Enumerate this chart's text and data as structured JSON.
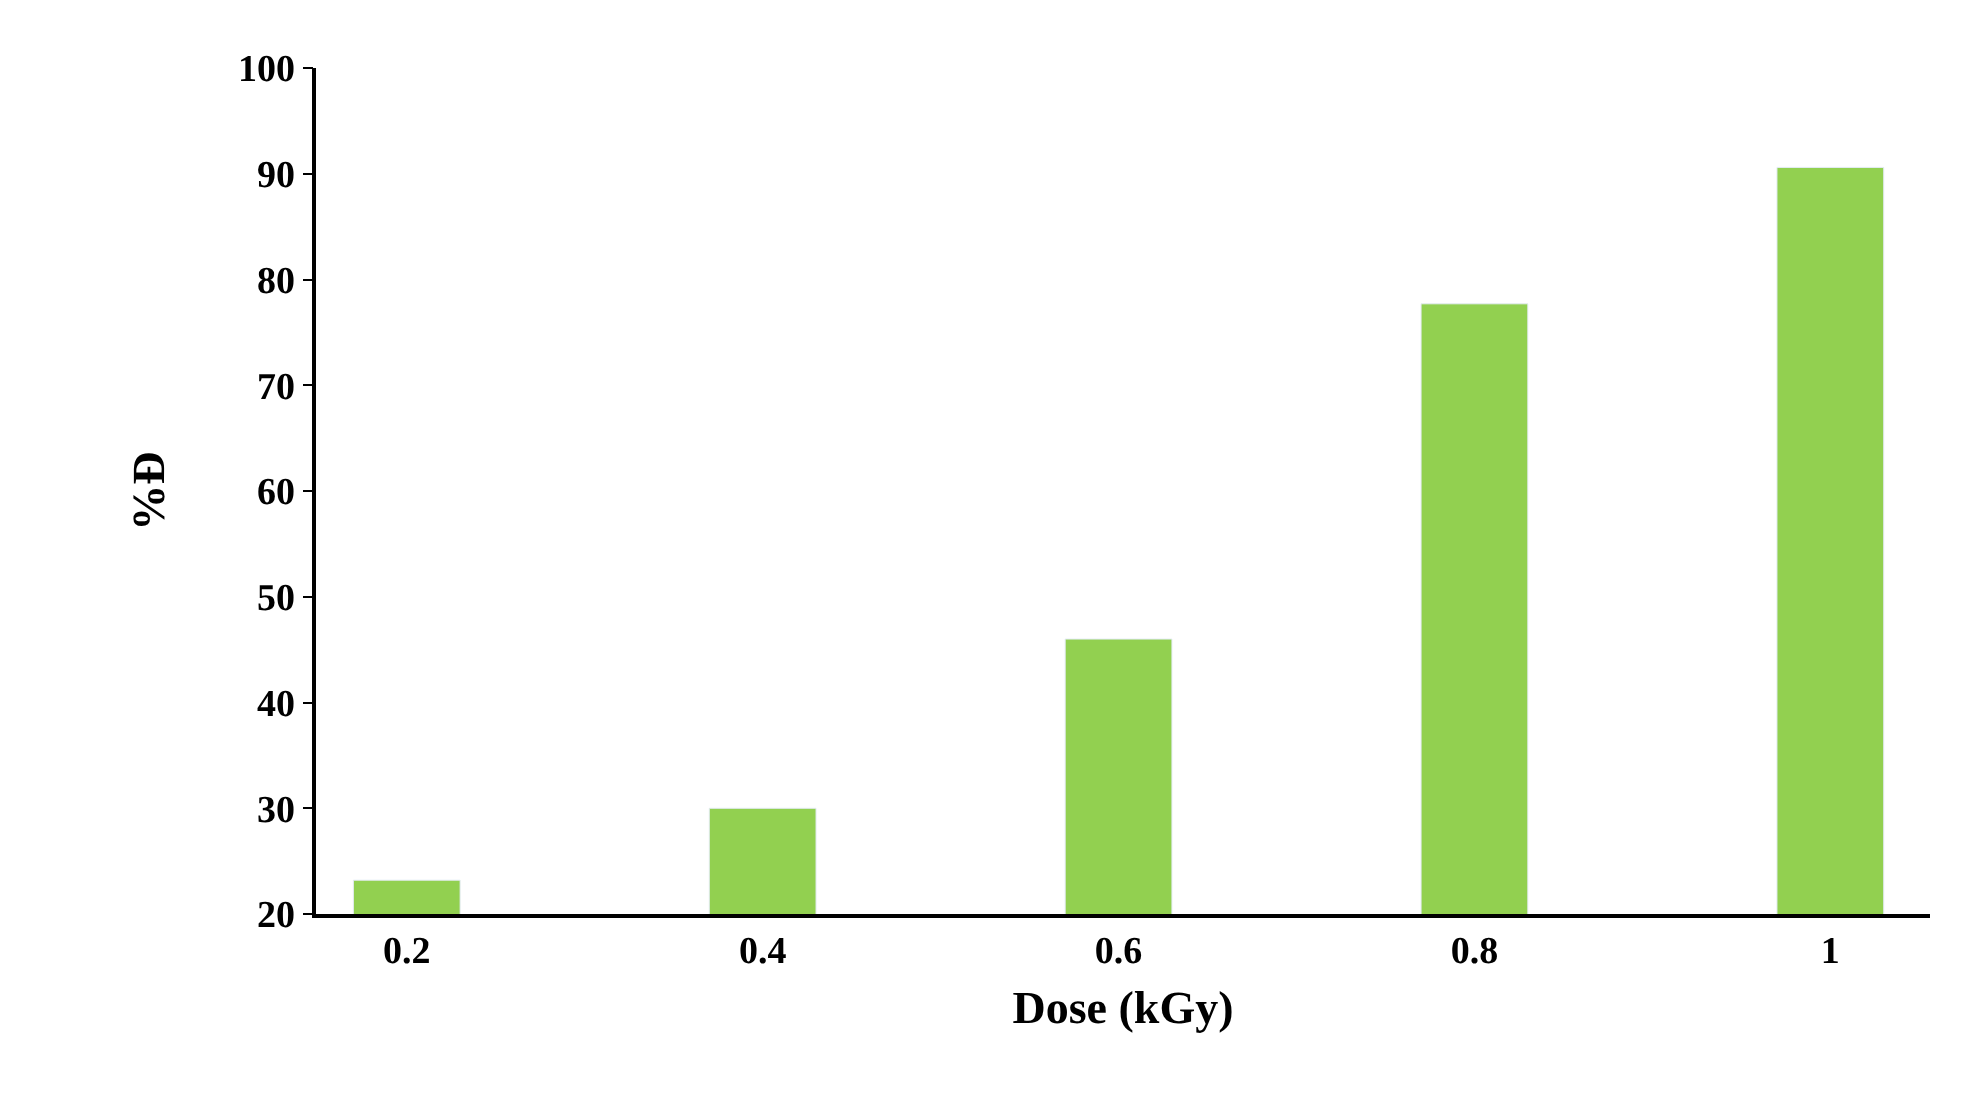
{
  "chart_data": {
    "type": "bar",
    "xlabel": "Dose (kGy)",
    "ylabel": "%Đ",
    "categories": [
      "0.2",
      "0.4",
      "0.6",
      "0.8",
      "1"
    ],
    "series": [
      {
        "color": "#92d050",
        "values": [
          23.2,
          30.0,
          46.0,
          77.7,
          90.6
        ]
      }
    ],
    "ylim": [
      20,
      100
    ],
    "yticks": [
      20,
      30,
      40,
      50,
      60,
      70,
      80,
      90,
      100
    ]
  }
}
